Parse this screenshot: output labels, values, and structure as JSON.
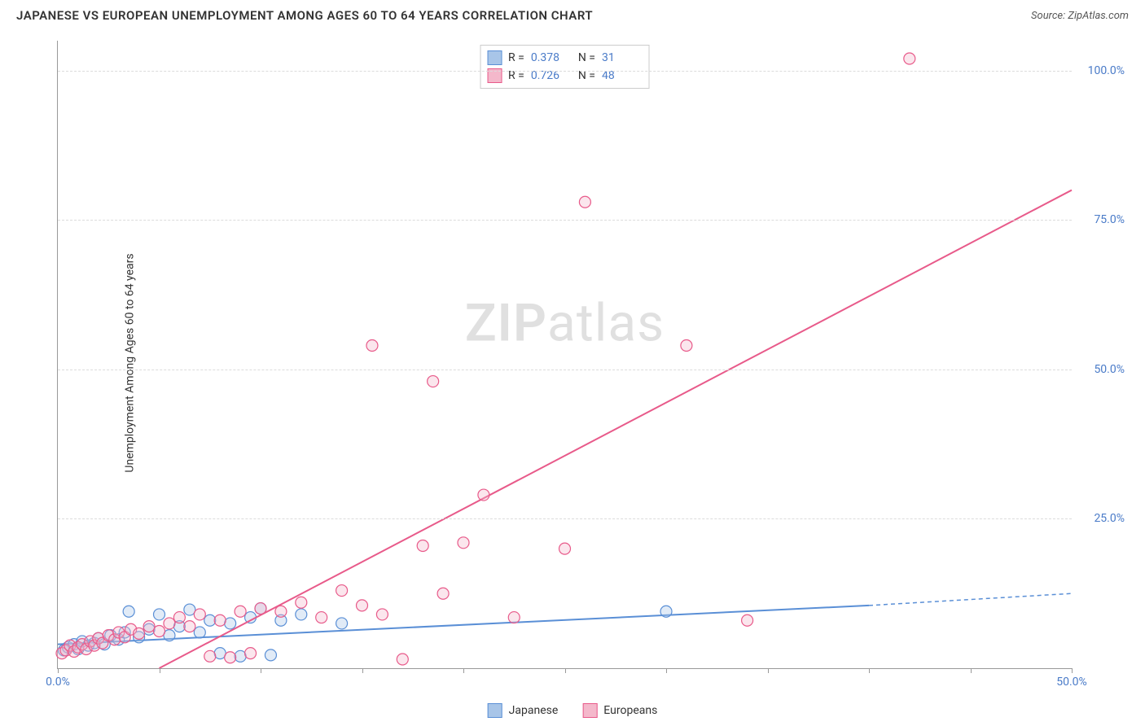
{
  "title": "JAPANESE VS EUROPEAN UNEMPLOYMENT AMONG AGES 60 TO 64 YEARS CORRELATION CHART",
  "source": "Source: ZipAtlas.com",
  "ylabel": "Unemployment Among Ages 60 to 64 years",
  "watermark_zip": "ZIP",
  "watermark_atlas": "atlas",
  "chart": {
    "type": "scatter",
    "xlim": [
      0,
      50
    ],
    "ylim": [
      0,
      105
    ],
    "x_ticks": [
      0,
      5,
      10,
      15,
      20,
      25,
      30,
      35,
      40,
      45,
      50
    ],
    "x_tick_labels": {
      "0": "0.0%",
      "50": "50.0%"
    },
    "y_ticks": [
      25,
      50,
      75,
      100
    ],
    "y_tick_labels": {
      "25": "25.0%",
      "50": "50.0%",
      "75": "75.0%",
      "100": "100.0%"
    },
    "background_color": "#ffffff",
    "grid_color": "#dcdcdc",
    "axis_color": "#999999",
    "tick_label_color": "#4a7bc8",
    "marker_radius": 7,
    "marker_fill_opacity": 0.35,
    "marker_stroke_width": 1.2,
    "series": [
      {
        "name": "Japanese",
        "color": "#5a8fd6",
        "fill": "#a8c5e8",
        "R": "0.378",
        "N": "31",
        "points": [
          [
            0.3,
            3.0
          ],
          [
            0.5,
            3.5
          ],
          [
            0.8,
            4.0
          ],
          [
            1.0,
            3.2
          ],
          [
            1.2,
            4.5
          ],
          [
            1.5,
            3.8
          ],
          [
            1.8,
            4.2
          ],
          [
            2.0,
            5.0
          ],
          [
            2.3,
            4.0
          ],
          [
            2.6,
            5.5
          ],
          [
            3.0,
            4.8
          ],
          [
            3.3,
            6.0
          ],
          [
            3.5,
            9.5
          ],
          [
            4.0,
            5.2
          ],
          [
            4.5,
            6.5
          ],
          [
            5.0,
            9.0
          ],
          [
            5.5,
            5.5
          ],
          [
            6.0,
            7.0
          ],
          [
            6.5,
            9.8
          ],
          [
            7.0,
            6.0
          ],
          [
            7.5,
            8.0
          ],
          [
            8.0,
            2.5
          ],
          [
            8.5,
            7.5
          ],
          [
            9.0,
            2.0
          ],
          [
            9.5,
            8.5
          ],
          [
            10.0,
            10.0
          ],
          [
            10.5,
            2.2
          ],
          [
            11.0,
            8.0
          ],
          [
            12.0,
            9.0
          ],
          [
            14.0,
            7.5
          ],
          [
            30.0,
            9.5
          ]
        ],
        "trend": {
          "x1": 0,
          "y1": 4.0,
          "x2": 40,
          "y2": 10.5,
          "ext_x2": 50,
          "ext_y2": 12.5
        }
      },
      {
        "name": "Europeans",
        "color": "#e85a8a",
        "fill": "#f4b8cb",
        "R": "0.726",
        "N": "48",
        "points": [
          [
            0.2,
            2.5
          ],
          [
            0.4,
            3.0
          ],
          [
            0.6,
            3.8
          ],
          [
            0.8,
            2.8
          ],
          [
            1.0,
            3.5
          ],
          [
            1.2,
            4.0
          ],
          [
            1.4,
            3.2
          ],
          [
            1.6,
            4.5
          ],
          [
            1.8,
            3.8
          ],
          [
            2.0,
            5.0
          ],
          [
            2.2,
            4.2
          ],
          [
            2.5,
            5.5
          ],
          [
            2.8,
            4.8
          ],
          [
            3.0,
            6.0
          ],
          [
            3.3,
            5.2
          ],
          [
            3.6,
            6.5
          ],
          [
            4.0,
            5.8
          ],
          [
            4.5,
            7.0
          ],
          [
            5.0,
            6.2
          ],
          [
            5.5,
            7.5
          ],
          [
            6.0,
            8.5
          ],
          [
            6.5,
            7.0
          ],
          [
            7.0,
            9.0
          ],
          [
            7.5,
            2.0
          ],
          [
            8.0,
            8.0
          ],
          [
            8.5,
            1.8
          ],
          [
            9.0,
            9.5
          ],
          [
            9.5,
            2.5
          ],
          [
            10.0,
            10.0
          ],
          [
            11.0,
            9.5
          ],
          [
            12.0,
            11.0
          ],
          [
            13.0,
            8.5
          ],
          [
            14.0,
            13.0
          ],
          [
            15.0,
            10.5
          ],
          [
            15.5,
            54.0
          ],
          [
            16.0,
            9.0
          ],
          [
            17.0,
            1.5
          ],
          [
            18.0,
            20.5
          ],
          [
            18.5,
            48.0
          ],
          [
            19.0,
            12.5
          ],
          [
            20.0,
            21.0
          ],
          [
            21.0,
            29.0
          ],
          [
            22.5,
            8.5
          ],
          [
            25.0,
            20.0
          ],
          [
            26.0,
            78.0
          ],
          [
            31.0,
            54.0
          ],
          [
            34.0,
            8.0
          ],
          [
            42.0,
            102.0
          ]
        ],
        "trend": {
          "x1": 5,
          "y1": 0,
          "x2": 50,
          "y2": 80
        }
      }
    ]
  },
  "legend_bottom": [
    {
      "label": "Japanese",
      "color": "#5a8fd6",
      "fill": "#a8c5e8"
    },
    {
      "label": "Europeans",
      "color": "#e85a8a",
      "fill": "#f4b8cb"
    }
  ]
}
